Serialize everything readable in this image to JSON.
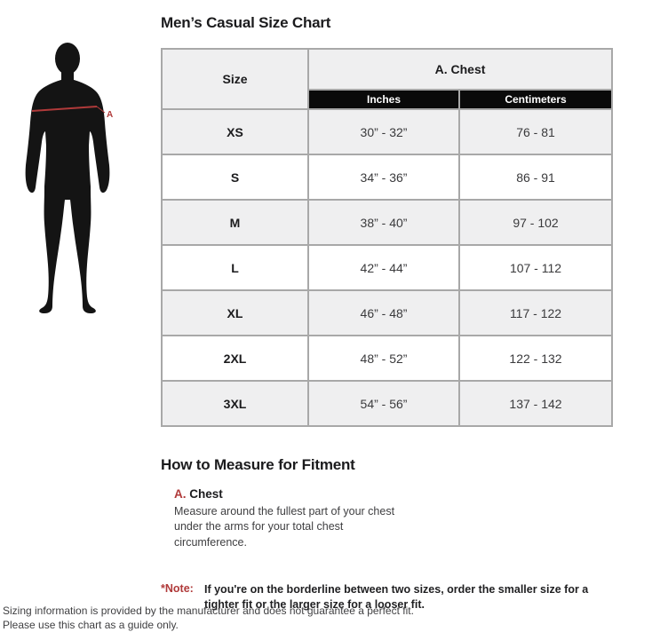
{
  "page": {
    "title": "Men’s Casual Size Chart"
  },
  "figure": {
    "name": "male-body-silhouette",
    "measurement_label": "A"
  },
  "size_chart": {
    "columns": {
      "size": "Size",
      "group": "A. Chest",
      "inches": "Inches",
      "centimeters": "Centimeters"
    },
    "rows": [
      {
        "size": "XS",
        "inches": "30” - 32”",
        "centimeters": "76 - 81"
      },
      {
        "size": "S",
        "inches": "34” - 36”",
        "centimeters": "86 - 91"
      },
      {
        "size": "M",
        "inches": "38” - 40”",
        "centimeters": "97 - 102"
      },
      {
        "size": "L",
        "inches": "42” - 44”",
        "centimeters": "107 - 112"
      },
      {
        "size": "XL",
        "inches": "46” - 48”",
        "centimeters": "117 - 122"
      },
      {
        "size": "2XL",
        "inches": "48” - 52”",
        "centimeters": "122 - 132"
      },
      {
        "size": "3XL",
        "inches": "54” - 56”",
        "centimeters": "137 - 142"
      }
    ]
  },
  "measure": {
    "heading": "How to Measure for Fitment",
    "item_letter": "A.",
    "item_label": " Chest",
    "item_description": "Measure around the fullest part of your chest under the arms for your total chest circumference."
  },
  "note": {
    "label": "*Note:",
    "text": "If you're on the borderline between two sizes, order the smaller size for a tighter fit or the larger size for a looser fit."
  },
  "footer": {
    "line1": "Sizing information is provided by the manufacturer and does not guarantee a perfect fit.",
    "line2": "Please use this chart as a guide only."
  },
  "colors": {
    "accent_red": "#b03a3a",
    "unit_bar_black": "#0a0a0a",
    "row_alt_gray": "#efeff0",
    "table_border_gray": "#a8a8a8",
    "text_dark": "#1b1b1d"
  }
}
